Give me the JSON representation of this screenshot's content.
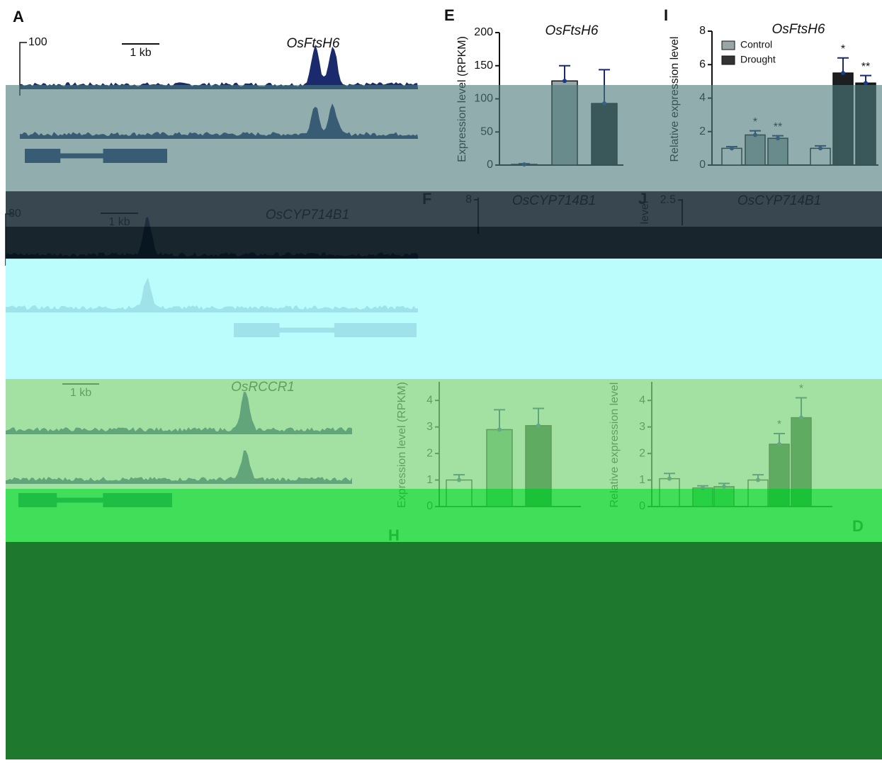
{
  "panel_letters": [
    "A",
    "E",
    "I",
    "F",
    "J",
    "H",
    "D"
  ],
  "tracks": [
    {
      "gene": "OsFtsH6",
      "scale": "100",
      "scale_bar": "1 kb"
    },
    {
      "gene": "OsCYP714B1",
      "scale": "80",
      "scale_bar": "1 kb"
    },
    {
      "gene": "OsRCCR1",
      "scale_bar": "1 kb"
    }
  ],
  "chart_data": [
    {
      "type": "bar",
      "title": "OsFtsH6",
      "y_label": "Expression level (RPKM)",
      "values": [
        1,
        127,
        93
      ],
      "errors": [
        1,
        23,
        51
      ],
      "colors": [
        "#ffffff",
        "#9aa6a6",
        "#1b1f22"
      ],
      "ylim": [
        0,
        200
      ],
      "yticks": [
        0,
        50,
        100,
        150,
        200
      ]
    },
    {
      "type": "bar",
      "title": "OsFtsH6",
      "y_label": "Relative expression level",
      "values": [
        1.0,
        1.8,
        1.6,
        1.0,
        5.5,
        4.9
      ],
      "errors": [
        0.1,
        0.25,
        0.15,
        0.15,
        0.9,
        0.45
      ],
      "annotations": [
        null,
        "*",
        "**",
        null,
        "*",
        "**"
      ],
      "colors": [
        "#ffffff",
        "#9aa6a6",
        "#9aa6a6",
        "#ffffff",
        "#1b1f22",
        "#1b1f22"
      ],
      "legend": [
        {
          "name": "Control",
          "color": "#9aa6a6"
        },
        {
          "name": "Drought",
          "color": "#333333"
        }
      ],
      "ylim": [
        0,
        8
      ],
      "yticks": [
        0,
        2,
        4,
        6,
        8
      ]
    },
    {
      "type": "bar",
      "title": "OsCYP714B1",
      "ylim": [
        0,
        8.5
      ],
      "yticks": [
        8
      ]
    },
    {
      "type": "bar",
      "title": "OsCYP714B1",
      "y_label": "level",
      "ylim": [
        0,
        2.6
      ],
      "yticks": [
        2.5
      ]
    },
    {
      "type": "bar",
      "y_label": "Expression level (RPKM)",
      "values": [
        1.0,
        2.9,
        3.05
      ],
      "errors": [
        0.2,
        0.75,
        0.65
      ],
      "colors": [
        "#ffffff",
        "#5aa86a",
        "#0c3f16"
      ],
      "ylim": [
        0,
        4.7
      ],
      "yticks": [
        0,
        1,
        2,
        3,
        4
      ]
    },
    {
      "type": "bar",
      "y_label": "Relative expression level",
      "values": [
        1.05,
        0.7,
        0.75,
        1.0,
        2.35,
        3.35
      ],
      "errors": [
        0.2,
        0.08,
        0.12,
        0.2,
        0.4,
        0.75
      ],
      "annotations": [
        null,
        null,
        null,
        null,
        "*",
        "*"
      ],
      "colors": [
        "#ffffff",
        "#5aa86a",
        "#5aa86a",
        "#ffffff",
        "#0c3f16",
        "#0c3f16"
      ],
      "ylim": [
        0,
        4.7
      ],
      "yticks": [
        0,
        1,
        2,
        3,
        4
      ]
    }
  ]
}
